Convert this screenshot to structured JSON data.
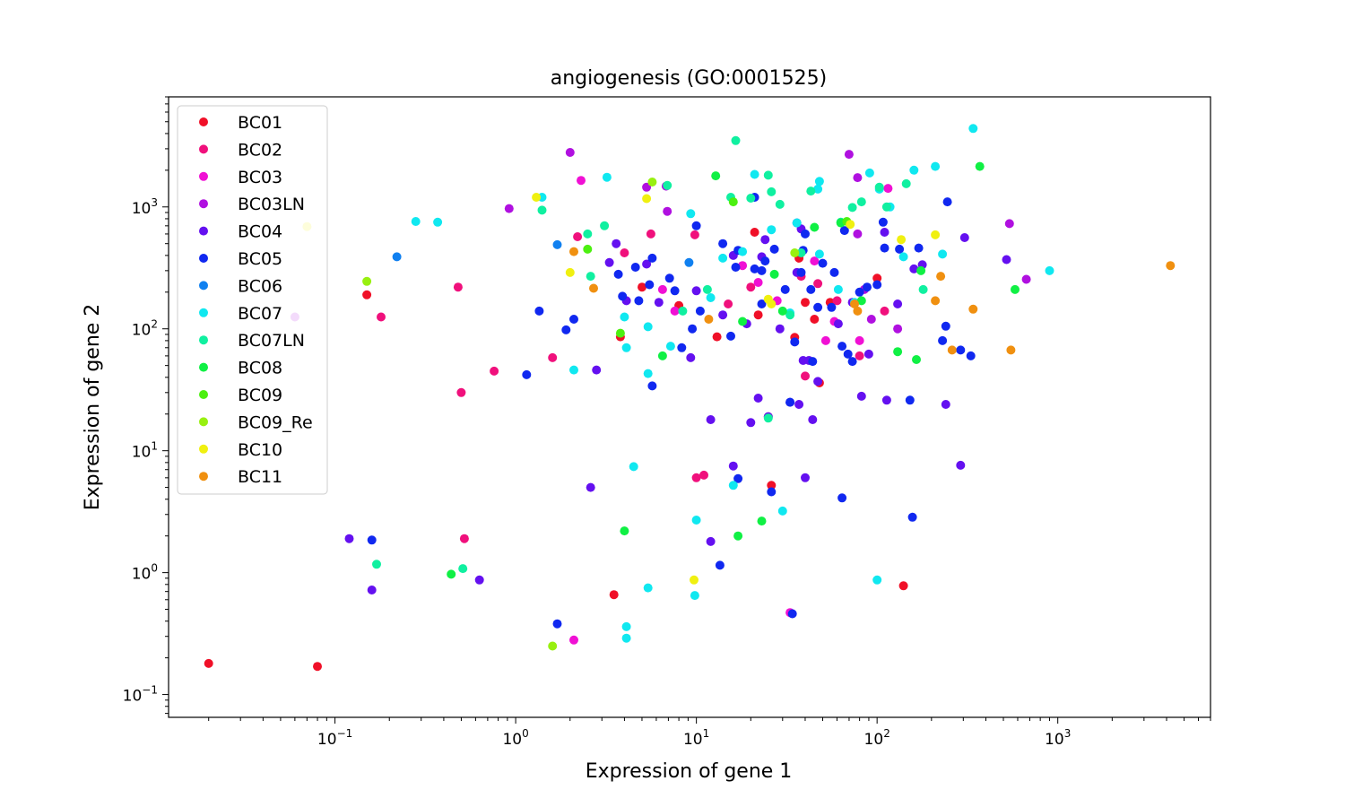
{
  "chart_data": {
    "type": "scatter",
    "title": "angiogenesis (GO:0001525)",
    "xlabel": "Expression of gene 1",
    "ylabel": "Expression of gene 2",
    "xscale": "log",
    "yscale": "log",
    "xlim": [
      0.012,
      7000
    ],
    "ylim": [
      0.065,
      8000
    ],
    "x_ticks": [
      {
        "value": 0.1,
        "base": "10",
        "exp": "−1"
      },
      {
        "value": 1,
        "base": "10",
        "exp": "0"
      },
      {
        "value": 10,
        "base": "10",
        "exp": "1"
      },
      {
        "value": 100,
        "base": "10",
        "exp": "2"
      },
      {
        "value": 1000,
        "base": "10",
        "exp": "3"
      }
    ],
    "y_ticks": [
      {
        "value": 0.1,
        "base": "10",
        "exp": "−1"
      },
      {
        "value": 1,
        "base": "10",
        "exp": "0"
      },
      {
        "value": 10,
        "base": "10",
        "exp": "1"
      },
      {
        "value": 100,
        "base": "10",
        "exp": "2"
      },
      {
        "value": 1000,
        "base": "10",
        "exp": "3"
      }
    ],
    "grid": false,
    "legend_position": "top-left",
    "series": [
      {
        "name": "BC01",
        "color": "#f01028",
        "points": [
          [
            0.02,
            0.18
          ],
          [
            0.08,
            0.17
          ],
          [
            0.15,
            190
          ],
          [
            3.5,
            0.66
          ],
          [
            3.8,
            86
          ],
          [
            5,
            220
          ],
          [
            8,
            155
          ],
          [
            13,
            86
          ],
          [
            21,
            620
          ],
          [
            22,
            130
          ],
          [
            26,
            5.2
          ],
          [
            35,
            85
          ],
          [
            37,
            380
          ],
          [
            40,
            165
          ],
          [
            45,
            120
          ],
          [
            48,
            36
          ],
          [
            55,
            165
          ],
          [
            100,
            260
          ],
          [
            140,
            0.78
          ]
        ]
      },
      {
        "name": "BC02",
        "color": "#f0107c",
        "points": [
          [
            0.18,
            125
          ],
          [
            0.48,
            220
          ],
          [
            0.5,
            30
          ],
          [
            0.52,
            1.9
          ],
          [
            0.76,
            45
          ],
          [
            1.6,
            58
          ],
          [
            2.2,
            570
          ],
          [
            4,
            420
          ],
          [
            5.6,
            600
          ],
          [
            9.8,
            590
          ],
          [
            10,
            6
          ],
          [
            11,
            6.3
          ],
          [
            15,
            160
          ],
          [
            20,
            220
          ],
          [
            25,
            19
          ],
          [
            38,
            270
          ],
          [
            40,
            41
          ],
          [
            47,
            235
          ],
          [
            60,
            170
          ],
          [
            80,
            60
          ],
          [
            110,
            140
          ]
        ]
      },
      {
        "name": "BC03",
        "color": "#f010d4",
        "points": [
          [
            2.1,
            0.28
          ],
          [
            2.3,
            1650
          ],
          [
            6.5,
            210
          ],
          [
            7.6,
            140
          ],
          [
            18,
            330
          ],
          [
            22,
            240
          ],
          [
            28,
            170
          ],
          [
            33,
            0.47
          ],
          [
            45,
            360
          ],
          [
            52,
            80
          ],
          [
            58,
            115
          ],
          [
            80,
            80
          ],
          [
            115,
            1420
          ]
        ]
      },
      {
        "name": "BC03LN",
        "color": "#b010e0",
        "points": [
          [
            0.06,
            125
          ],
          [
            0.92,
            970
          ],
          [
            2,
            2800
          ],
          [
            5.3,
            1450
          ],
          [
            6.8,
            1480
          ],
          [
            6.9,
            920
          ],
          [
            70,
            2700
          ],
          [
            78,
            1740
          ],
          [
            78,
            600
          ],
          [
            85,
            210
          ],
          [
            93,
            120
          ],
          [
            130,
            100
          ],
          [
            540,
            730
          ],
          [
            670,
            255
          ]
        ]
      },
      {
        "name": "BC04",
        "color": "#6410f0",
        "points": [
          [
            0.12,
            1.9
          ],
          [
            0.16,
            0.72
          ],
          [
            0.63,
            0.87
          ],
          [
            2.6,
            5
          ],
          [
            2.8,
            46
          ],
          [
            3.3,
            350
          ],
          [
            3.6,
            500
          ],
          [
            4.1,
            170
          ],
          [
            5.3,
            340
          ],
          [
            6.2,
            165
          ],
          [
            9.3,
            58
          ],
          [
            10,
            205
          ],
          [
            12,
            18
          ],
          [
            12,
            1.8
          ],
          [
            14,
            130
          ],
          [
            16,
            400
          ],
          [
            16,
            7.5
          ],
          [
            19,
            110
          ],
          [
            20,
            17
          ],
          [
            22,
            27
          ],
          [
            23,
            390
          ],
          [
            24,
            540
          ],
          [
            25,
            19
          ],
          [
            29,
            100
          ],
          [
            33,
            25
          ],
          [
            36,
            290
          ],
          [
            37,
            24
          ],
          [
            38,
            660
          ],
          [
            39,
            55
          ],
          [
            40,
            6
          ],
          [
            42,
            55
          ],
          [
            44,
            18
          ],
          [
            47,
            37
          ],
          [
            61,
            110
          ],
          [
            73,
            165
          ],
          [
            82,
            28
          ],
          [
            90,
            62
          ],
          [
            110,
            620
          ],
          [
            113,
            26
          ],
          [
            130,
            160
          ],
          [
            160,
            310
          ],
          [
            178,
            335
          ],
          [
            240,
            24
          ],
          [
            290,
            7.6
          ],
          [
            305,
            560
          ],
          [
            520,
            370
          ]
        ]
      },
      {
        "name": "BC05",
        "color": "#1028f0",
        "points": [
          [
            0.16,
            1.85
          ],
          [
            1.15,
            42
          ],
          [
            1.35,
            140
          ],
          [
            1.7,
            0.38
          ],
          [
            1.9,
            98
          ],
          [
            2.1,
            120
          ],
          [
            3.7,
            280
          ],
          [
            3.9,
            185
          ],
          [
            4.6,
            320
          ],
          [
            4.8,
            170
          ],
          [
            5.5,
            230
          ],
          [
            5.7,
            380
          ],
          [
            5.7,
            34
          ],
          [
            7.1,
            260
          ],
          [
            7.6,
            205
          ],
          [
            8.3,
            70
          ],
          [
            9.5,
            100
          ],
          [
            10,
            700
          ],
          [
            10.5,
            140
          ],
          [
            13.5,
            1.15
          ],
          [
            14,
            500
          ],
          [
            15.5,
            87
          ],
          [
            16.5,
            320
          ],
          [
            17,
            440
          ],
          [
            17,
            5.9
          ],
          [
            21,
            310
          ],
          [
            21,
            1200
          ],
          [
            23,
            300
          ],
          [
            23,
            160
          ],
          [
            24,
            360
          ],
          [
            26,
            4.6
          ],
          [
            27,
            450
          ],
          [
            31,
            210
          ],
          [
            33,
            25
          ],
          [
            34,
            0.46
          ],
          [
            35,
            78
          ],
          [
            36,
            740
          ],
          [
            38,
            290
          ],
          [
            39,
            440
          ],
          [
            40,
            600
          ],
          [
            43,
            210
          ],
          [
            44,
            54
          ],
          [
            47,
            150
          ],
          [
            50,
            345
          ],
          [
            56,
            150
          ],
          [
            58,
            290
          ],
          [
            64,
            4.1
          ],
          [
            64,
            72
          ],
          [
            66,
            640
          ],
          [
            69,
            62
          ],
          [
            73,
            54
          ],
          [
            80,
            200
          ],
          [
            88,
            220
          ],
          [
            100,
            230
          ],
          [
            108,
            750
          ],
          [
            110,
            460
          ],
          [
            133,
            450
          ],
          [
            152,
            26
          ],
          [
            157,
            2.85
          ],
          [
            170,
            460
          ],
          [
            230,
            80
          ],
          [
            245,
            1100
          ],
          [
            240,
            105
          ],
          [
            290,
            67
          ],
          [
            330,
            60
          ]
        ]
      },
      {
        "name": "BC06",
        "color": "#1080f0",
        "points": [
          [
            0.22,
            390
          ],
          [
            1.7,
            490
          ],
          [
            9.1,
            350
          ]
        ]
      },
      {
        "name": "BC07",
        "color": "#10e8f0",
        "points": [
          [
            0.28,
            760
          ],
          [
            0.37,
            750
          ],
          [
            1.4,
            1200
          ],
          [
            2.1,
            46
          ],
          [
            3.2,
            1750
          ],
          [
            4,
            125
          ],
          [
            4.1,
            70
          ],
          [
            4.1,
            0.36
          ],
          [
            4.1,
            0.29
          ],
          [
            4.5,
            7.4
          ],
          [
            5.4,
            104
          ],
          [
            5.4,
            43
          ],
          [
            5.4,
            0.75
          ],
          [
            7.2,
            72
          ],
          [
            9.3,
            880
          ],
          [
            10,
            2.7
          ],
          [
            9.8,
            0.65
          ],
          [
            12,
            180
          ],
          [
            14,
            380
          ],
          [
            16,
            5.2
          ],
          [
            18,
            430
          ],
          [
            21,
            1850
          ],
          [
            26,
            650
          ],
          [
            30,
            3.2
          ],
          [
            33,
            135
          ],
          [
            36,
            740
          ],
          [
            47,
            1400
          ],
          [
            48,
            1620
          ],
          [
            48,
            410
          ],
          [
            61,
            210
          ],
          [
            75,
            165
          ],
          [
            91,
            1900
          ],
          [
            100,
            0.87
          ],
          [
            103,
            1400
          ],
          [
            118,
            1000
          ],
          [
            140,
            390
          ],
          [
            160,
            2000
          ],
          [
            210,
            2150
          ],
          [
            230,
            410
          ],
          [
            340,
            4400
          ],
          [
            900,
            300
          ]
        ]
      },
      {
        "name": "BC07LN",
        "color": "#10f0a0",
        "points": [
          [
            0.17,
            1.17
          ],
          [
            0.51,
            1.08
          ],
          [
            1.4,
            940
          ],
          [
            2.5,
            600
          ],
          [
            2.6,
            270
          ],
          [
            3.1,
            700
          ],
          [
            6.9,
            1500
          ],
          [
            8.4,
            140
          ],
          [
            11.5,
            210
          ],
          [
            15.5,
            1200
          ],
          [
            16.5,
            3500
          ],
          [
            20,
            1180
          ],
          [
            25,
            1820
          ],
          [
            25,
            18.5
          ],
          [
            26,
            1330
          ],
          [
            29,
            1050
          ],
          [
            33,
            130
          ],
          [
            38,
            420
          ],
          [
            43,
            1350
          ],
          [
            63,
            750
          ],
          [
            73,
            990
          ],
          [
            82,
            1100
          ],
          [
            103,
            1450
          ],
          [
            113,
            1000
          ],
          [
            145,
            1550
          ],
          [
            180,
            210
          ]
        ]
      },
      {
        "name": "BC08",
        "color": "#10f044",
        "points": [
          [
            0.44,
            0.97
          ],
          [
            4,
            2.2
          ],
          [
            6.5,
            60
          ],
          [
            12.8,
            1800
          ],
          [
            17,
            2
          ],
          [
            18,
            115
          ],
          [
            23,
            2.65
          ],
          [
            27,
            280
          ],
          [
            30,
            140
          ],
          [
            45,
            680
          ],
          [
            63,
            740
          ],
          [
            82,
            170
          ],
          [
            130,
            65
          ],
          [
            165,
            56
          ],
          [
            175,
            300
          ],
          [
            370,
            2150
          ],
          [
            580,
            210
          ]
        ]
      },
      {
        "name": "BC09",
        "color": "#4cf010",
        "points": [
          [
            2.5,
            450
          ],
          [
            3.8,
            92
          ],
          [
            16,
            1100
          ],
          [
            68,
            760
          ]
        ]
      },
      {
        "name": "BC09_Re",
        "color": "#98f010",
        "points": [
          [
            0.15,
            245
          ],
          [
            1.6,
            0.25
          ],
          [
            5.7,
            1600
          ],
          [
            35,
            420
          ]
        ]
      },
      {
        "name": "BC10",
        "color": "#f0f010",
        "points": [
          [
            0.07,
            690
          ],
          [
            1.3,
            1200
          ],
          [
            2,
            290
          ],
          [
            5.3,
            1170
          ],
          [
            9.7,
            0.87
          ],
          [
            25,
            175
          ],
          [
            26,
            160
          ],
          [
            71,
            720
          ],
          [
            136,
            540
          ],
          [
            210,
            590
          ]
        ]
      },
      {
        "name": "BC11",
        "color": "#f09010",
        "points": [
          [
            2.1,
            430
          ],
          [
            2.7,
            215
          ],
          [
            11.7,
            120
          ],
          [
            75,
            160
          ],
          [
            78,
            140
          ],
          [
            210,
            170
          ],
          [
            225,
            270
          ],
          [
            260,
            67
          ],
          [
            340,
            145
          ],
          [
            550,
            67
          ],
          [
            4200,
            330
          ]
        ]
      }
    ]
  }
}
